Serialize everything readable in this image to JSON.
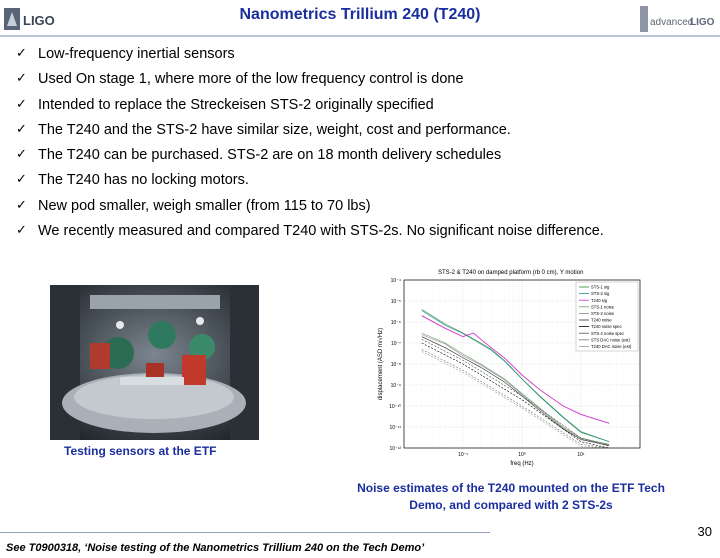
{
  "header": {
    "title": "Nanometrics Trillium 240 (T240)",
    "logo_left": "LIGO",
    "logo_right_prefix": "advanced",
    "logo_right_suffix": "LIGO",
    "brand_color": "#1a2e9e"
  },
  "bullets": [
    "Low-frequency inertial sensors",
    "Used On stage 1, where more of the low frequency control is done",
    "Intended to replace the Streckeisen STS-2 originally specified",
    "The T240 and the STS-2 have similar size, weight, cost and performance.",
    "The T240 can be purchased. STS-2 are on 18 month delivery schedules",
    "The T240 has no locking motors.",
    "New pod smaller, weigh smaller (from 115 to 70 lbs)",
    "We recently measured and compared T240 with STS-2s. No significant noise difference."
  ],
  "check_glyph": "✓",
  "photo": {
    "caption": "Testing sensors at the ETF"
  },
  "chart_data": {
    "type": "line",
    "title": "STS-2 & T240 on damped platform (rb 0 cm), Y motion",
    "xlabel": "freq (Hz)",
    "ylabel": "displacement (ASD m/√Hz)",
    "xscale": "log",
    "yscale": "log",
    "xlim": [
      0.01,
      100
    ],
    "ylim": [
      1e-12,
      0.0001
    ],
    "x_ticks": [
      "10⁻¹",
      "10⁰",
      "10¹"
    ],
    "y_ticks": [
      "10⁻⁴",
      "10⁻⁵",
      "10⁻⁶",
      "10⁻⁷",
      "10⁻⁸",
      "10⁻⁹",
      "10⁻¹⁰",
      "10⁻¹¹",
      "10⁻¹²"
    ],
    "legend_position": "top-right",
    "grid": true,
    "series": [
      {
        "name": "STS-1 sig",
        "color": "#2b8a2b",
        "x": [
          0.02,
          0.05,
          0.1,
          0.2,
          0.3,
          0.5,
          1,
          2,
          5,
          10,
          30
        ],
        "y": [
          4e-06,
          8e-07,
          3e-07,
          1e-07,
          5e-08,
          1.5e-08,
          2e-09,
          3e-10,
          3e-11,
          6e-12,
          2e-12
        ]
      },
      {
        "name": "STS-2 sig",
        "color": "#1f8f8f",
        "x": [
          0.02,
          0.05,
          0.1,
          0.2,
          0.3,
          0.5,
          1,
          2,
          5,
          10,
          30
        ],
        "y": [
          3.5e-06,
          7e-07,
          2.8e-07,
          9e-08,
          4.5e-08,
          1.4e-08,
          1.9e-09,
          2.8e-10,
          2.8e-11,
          5.5e-12,
          2e-12
        ]
      },
      {
        "name": "T240 sig",
        "color": "#cc33cc",
        "x": [
          0.02,
          0.05,
          0.1,
          0.15,
          0.2,
          0.3,
          0.5,
          1,
          2,
          5,
          10,
          30
        ],
        "y": [
          2e-06,
          5e-07,
          2e-07,
          3e-07,
          1.5e-07,
          6e-08,
          2e-08,
          3e-09,
          6e-10,
          1e-10,
          4e-11,
          1.5e-11
        ]
      },
      {
        "name": "STS-1 noise",
        "color": "#6aa06a",
        "x": [
          0.02,
          0.05,
          0.1,
          0.2,
          0.5,
          1,
          2,
          5,
          10,
          30
        ],
        "y": [
          3e-07,
          1e-07,
          3e-08,
          1e-08,
          2e-09,
          4e-10,
          8e-11,
          1e-11,
          3e-12,
          1.5e-12
        ]
      },
      {
        "name": "STS-2 noise",
        "color": "#888888",
        "x": [
          0.02,
          0.05,
          0.1,
          0.2,
          0.5,
          1,
          2,
          5,
          10,
          30
        ],
        "y": [
          2.5e-07,
          9e-08,
          2.5e-08,
          9e-09,
          1.8e-09,
          3.5e-10,
          7e-11,
          9e-12,
          2.8e-12,
          1.4e-12
        ]
      },
      {
        "name": "T240 noise",
        "color": "#333333",
        "x": [
          0.02,
          0.05,
          0.1,
          0.2,
          0.5,
          1,
          2,
          5,
          10,
          30
        ],
        "y": [
          2e-07,
          6e-08,
          2e-08,
          7e-09,
          1.4e-09,
          3e-10,
          6e-11,
          8e-12,
          2.5e-12,
          1.3e-12
        ]
      },
      {
        "name": "T240 noise spec",
        "color": "#000000",
        "x": [
          0.02,
          0.1,
          1,
          10,
          30
        ],
        "y": [
          1e-07,
          1e-08,
          2e-10,
          2e-12,
          1e-12
        ]
      },
      {
        "name": "STS-2 noise spec",
        "color": "#555555",
        "x": [
          0.02,
          0.1,
          1,
          10,
          30
        ],
        "y": [
          1.5e-07,
          1.5e-08,
          3e-10,
          3e-12,
          1.2e-12
        ]
      },
      {
        "name": "STS DAC noise (est)",
        "color": "#777777",
        "x": [
          0.02,
          0.1,
          1,
          10,
          30
        ],
        "y": [
          5e-08,
          5e-09,
          1e-10,
          1.5e-12,
          1e-12
        ]
      },
      {
        "name": "T240 DAC noise (est)",
        "color": "#999999",
        "x": [
          0.02,
          0.1,
          1,
          10,
          30
        ],
        "y": [
          4e-08,
          4e-09,
          8e-11,
          1.2e-12,
          1e-12
        ]
      }
    ],
    "caption": "Noise estimates of the T240 mounted on the ETF Tech Demo, and compared with 2 STS-2s"
  },
  "footer": {
    "page_number": "30",
    "reference": "See T0900318, ‘Noise testing of the Nanometrics Trillium 240 on the Tech Demo’"
  }
}
